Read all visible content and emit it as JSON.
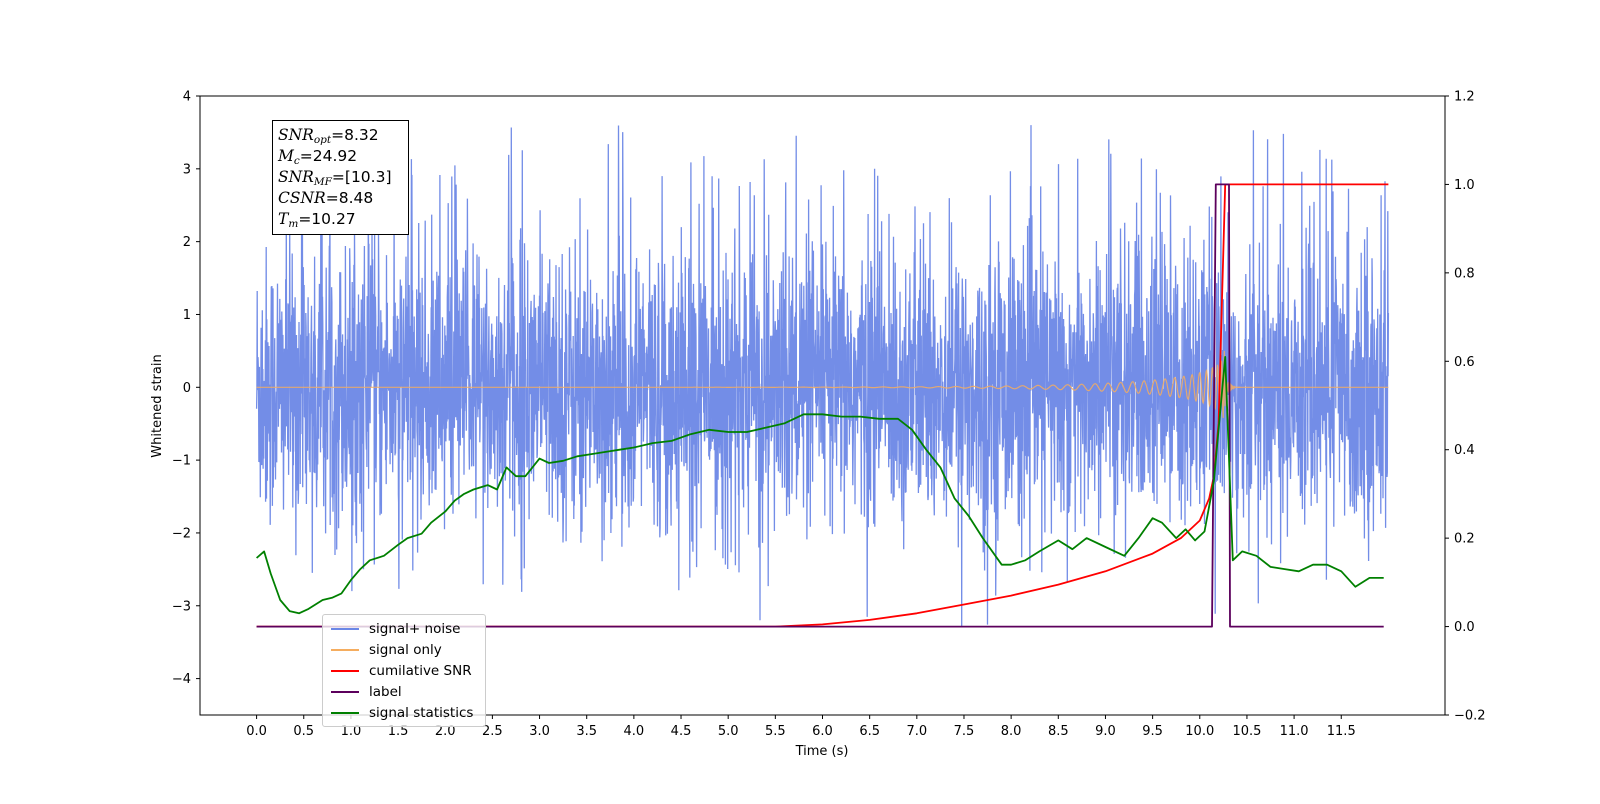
{
  "chart_data": {
    "type": "line",
    "xlabel": "Time (s)",
    "ylabel": "Whitened strain",
    "xlim": [
      -0.6,
      12.6
    ],
    "ylim": [
      -4.5,
      4.0
    ],
    "y2lim": [
      -0.2,
      1.2
    ],
    "x_ticks": [
      "0.0",
      "0.5",
      "1.0",
      "1.5",
      "2.0",
      "2.5",
      "3.0",
      "3.5",
      "4.0",
      "4.5",
      "5.0",
      "5.5",
      "6.0",
      "6.5",
      "7.0",
      "7.5",
      "8.0",
      "8.5",
      "9.0",
      "9.5",
      "10.0",
      "10.5",
      "11.0",
      "11.5"
    ],
    "y_ticks": [
      "−4",
      "−3",
      "−2",
      "−1",
      "0",
      "1",
      "2",
      "3",
      "4"
    ],
    "y2_ticks": [
      "−0.2",
      "0.0",
      "0.2",
      "0.4",
      "0.6",
      "0.8",
      "1.0",
      "1.2"
    ],
    "legend_position": "lower-left",
    "annotation": {
      "snr_opt": "=8.32",
      "mc": "=24.92",
      "snr_mf": "=[10.3]",
      "csnr": "=8.48",
      "tm": "=10.27"
    },
    "series": [
      {
        "name": "signal+ noise",
        "color": "#6b87e6",
        "axis": "left",
        "style": "noise",
        "x_range": [
          0,
          12.0
        ],
        "amplitude_typical": 1.2,
        "amplitude_peaks": 3.6
      },
      {
        "name": "signal only",
        "color": "#f5ad5f",
        "axis": "left",
        "style": "chirp",
        "x_range": [
          0,
          12.0
        ],
        "merger_time": 10.27,
        "peak_amplitude": 0.5
      },
      {
        "name": "cumilative SNR",
        "color": "#ff0000",
        "axis": "right",
        "x": [
          0,
          5.5,
          6.0,
          6.5,
          7.0,
          7.5,
          8.0,
          8.5,
          9.0,
          9.5,
          9.8,
          10.0,
          10.1,
          10.15,
          10.2,
          10.23,
          10.27,
          12.0
        ],
        "values": [
          0,
          0,
          0.005,
          0.015,
          0.03,
          0.05,
          0.07,
          0.095,
          0.125,
          0.165,
          0.2,
          0.24,
          0.29,
          0.34,
          0.46,
          0.7,
          1.0,
          1.0
        ]
      },
      {
        "name": "label",
        "color": "#5c005c",
        "axis": "right",
        "x": [
          0,
          10.13,
          10.17,
          10.31,
          10.32,
          11.95
        ],
        "values": [
          0,
          0,
          1.0,
          1.0,
          0,
          0
        ]
      },
      {
        "name": "signal statistics",
        "color": "#008000",
        "axis": "right",
        "x": [
          0,
          0.08,
          0.15,
          0.25,
          0.35,
          0.45,
          0.55,
          0.7,
          0.8,
          0.9,
          1.0,
          1.1,
          1.2,
          1.35,
          1.5,
          1.6,
          1.75,
          1.85,
          2.0,
          2.1,
          2.2,
          2.3,
          2.45,
          2.55,
          2.65,
          2.75,
          2.85,
          3.0,
          3.1,
          3.25,
          3.4,
          3.55,
          3.7,
          3.85,
          4.0,
          4.2,
          4.4,
          4.6,
          4.8,
          5.0,
          5.2,
          5.4,
          5.6,
          5.8,
          6.0,
          6.2,
          6.4,
          6.6,
          6.8,
          6.95,
          7.1,
          7.25,
          7.4,
          7.55,
          7.7,
          7.9,
          8.0,
          8.15,
          8.3,
          8.5,
          8.65,
          8.8,
          9.0,
          9.2,
          9.35,
          9.5,
          9.6,
          9.75,
          9.85,
          9.95,
          10.05,
          10.15,
          10.27,
          10.35,
          10.45,
          10.6,
          10.75,
          10.9,
          11.05,
          11.2,
          11.35,
          11.5,
          11.65,
          11.8,
          11.95
        ],
        "values": [
          0.155,
          0.17,
          0.12,
          0.06,
          0.035,
          0.03,
          0.04,
          0.06,
          0.065,
          0.075,
          0.105,
          0.13,
          0.15,
          0.16,
          0.185,
          0.2,
          0.21,
          0.235,
          0.26,
          0.285,
          0.3,
          0.31,
          0.32,
          0.31,
          0.36,
          0.34,
          0.34,
          0.38,
          0.37,
          0.375,
          0.385,
          0.39,
          0.395,
          0.4,
          0.405,
          0.415,
          0.42,
          0.435,
          0.445,
          0.44,
          0.44,
          0.45,
          0.46,
          0.48,
          0.48,
          0.475,
          0.475,
          0.47,
          0.47,
          0.445,
          0.4,
          0.36,
          0.29,
          0.25,
          0.2,
          0.14,
          0.14,
          0.15,
          0.17,
          0.195,
          0.175,
          0.2,
          0.18,
          0.16,
          0.2,
          0.245,
          0.235,
          0.2,
          0.22,
          0.195,
          0.215,
          0.33,
          0.61,
          0.15,
          0.17,
          0.16,
          0.135,
          0.13,
          0.125,
          0.14,
          0.14,
          0.125,
          0.09,
          0.11,
          0.11
        ]
      }
    ]
  }
}
